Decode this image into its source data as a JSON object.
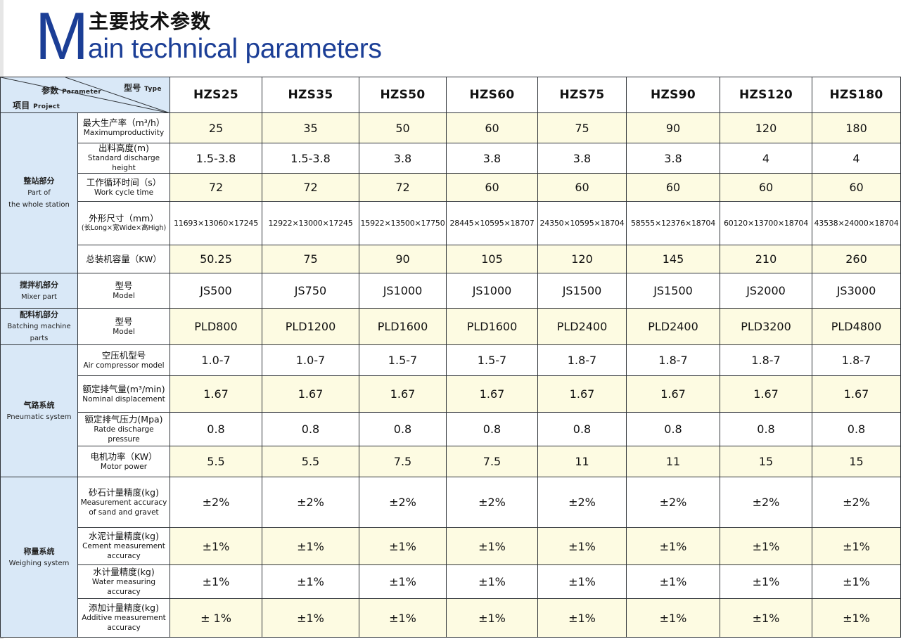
{
  "header": {
    "big_letter": "M",
    "title_cn": "主要技术参数",
    "title_en": "ain technical parameters"
  },
  "table": {
    "corner": {
      "type_cn": "型号",
      "type_en": "Type",
      "param_cn": "参数",
      "param_en": "Parameter",
      "project_cn": "项目",
      "project_en": "Project"
    },
    "models": [
      "HZS25",
      "HZS35",
      "HZS50",
      "HZS60",
      "HZS75",
      "HZS90",
      "HZS120",
      "HZS180"
    ],
    "groups": [
      {
        "cn": "整站部分",
        "en1": "Part of",
        "en2": "the whole station"
      },
      {
        "cn": "搅拌机部分",
        "en1": "Mixer part",
        "en2": ""
      },
      {
        "cn": "配料机部分",
        "en1": "Batching machine parts",
        "en2": ""
      },
      {
        "cn": "气路系统",
        "en1": "Pneumatic system",
        "en2": ""
      },
      {
        "cn": "称量系统",
        "en1": "Weighing system",
        "en2": ""
      }
    ],
    "rows": [
      {
        "cn": "最大生产率（m³/h）",
        "en": "Maximumproductivity",
        "values": [
          "25",
          "35",
          "50",
          "60",
          "75",
          "90",
          "120",
          "180"
        ]
      },
      {
        "cn": "出料高度(m)",
        "en": "Standard discharge height",
        "values": [
          "1.5-3.8",
          "1.5-3.8",
          "3.8",
          "3.8",
          "3.8",
          "3.8",
          "4",
          "4"
        ]
      },
      {
        "cn": "工作循环时间（s）",
        "en": "Work cycle time",
        "values": [
          "72",
          "72",
          "72",
          "60",
          "60",
          "60",
          "60",
          "60"
        ]
      },
      {
        "cn": "外形尺寸（mm）",
        "en": "(长Long×宽Wide×高High)",
        "values": [
          "11693×13060×17245",
          "12922×13000×17245",
          "15922×13500×17750",
          "28445×10595×18707",
          "24350×10595×18704",
          "58555×12376×18704",
          "60120×13700×18704",
          "43538×24000×18704"
        ]
      },
      {
        "cn": "总装机容量（KW）",
        "en": "",
        "values": [
          "50.25",
          "75",
          "90",
          "105",
          "120",
          "145",
          "210",
          "260"
        ]
      },
      {
        "cn": "型号",
        "en": "Model",
        "values": [
          "JS500",
          "JS750",
          "JS1000",
          "JS1000",
          "JS1500",
          "JS1500",
          "JS2000",
          "JS3000"
        ]
      },
      {
        "cn": "型号",
        "en": "Model",
        "values": [
          "PLD800",
          "PLD1200",
          "PLD1600",
          "PLD1600",
          "PLD2400",
          "PLD2400",
          "PLD3200",
          "PLD4800"
        ]
      },
      {
        "cn": "空压机型号",
        "en": "Air compressor model",
        "values": [
          "1.0-7",
          "1.0-7",
          "1.5-7",
          "1.5-7",
          "1.8-7",
          "1.8-7",
          "1.8-7",
          "1.8-7"
        ]
      },
      {
        "cn": "额定排气量(m³/min)",
        "en": "Nominal displacement",
        "values": [
          "1.67",
          "1.67",
          "1.67",
          "1.67",
          "1.67",
          "1.67",
          "1.67",
          "1.67"
        ]
      },
      {
        "cn": "额定排气压力(Mpa)",
        "en": "Ratde discharge pressure",
        "values": [
          "0.8",
          "0.8",
          "0.8",
          "0.8",
          "0.8",
          "0.8",
          "0.8",
          "0.8"
        ]
      },
      {
        "cn": "电机功率（KW）",
        "en": "Motor power",
        "values": [
          "5.5",
          "5.5",
          "7.5",
          "7.5",
          "11",
          "11",
          "15",
          "15"
        ]
      },
      {
        "cn": "砂石计量精度(kg)",
        "en": "Measurement accuracy of sand and gravet",
        "values": [
          "±2%",
          "±2%",
          "±2%",
          "±2%",
          "±2%",
          "±2%",
          "±2%",
          "±2%"
        ]
      },
      {
        "cn": "水泥计量精度(kg)",
        "en": "Cement measurement accuracy",
        "values": [
          "±1%",
          "±1%",
          "±1%",
          "±1%",
          "±1%",
          "±1%",
          "±1%",
          "±1%"
        ]
      },
      {
        "cn": "水计量精度(kg)",
        "en": "Water measuring accuracy",
        "values": [
          "±1%",
          "±1%",
          "±1%",
          "±1%",
          "±1%",
          "±1%",
          "±1%",
          "±1%"
        ]
      },
      {
        "cn": "添加计量精度(kg)",
        "en": "Additive measurement accuracy",
        "values": [
          "± 1%",
          "±1%",
          "±1%",
          "±1%",
          "±1%",
          "±1%",
          "±1%",
          "±1%"
        ]
      }
    ]
  }
}
